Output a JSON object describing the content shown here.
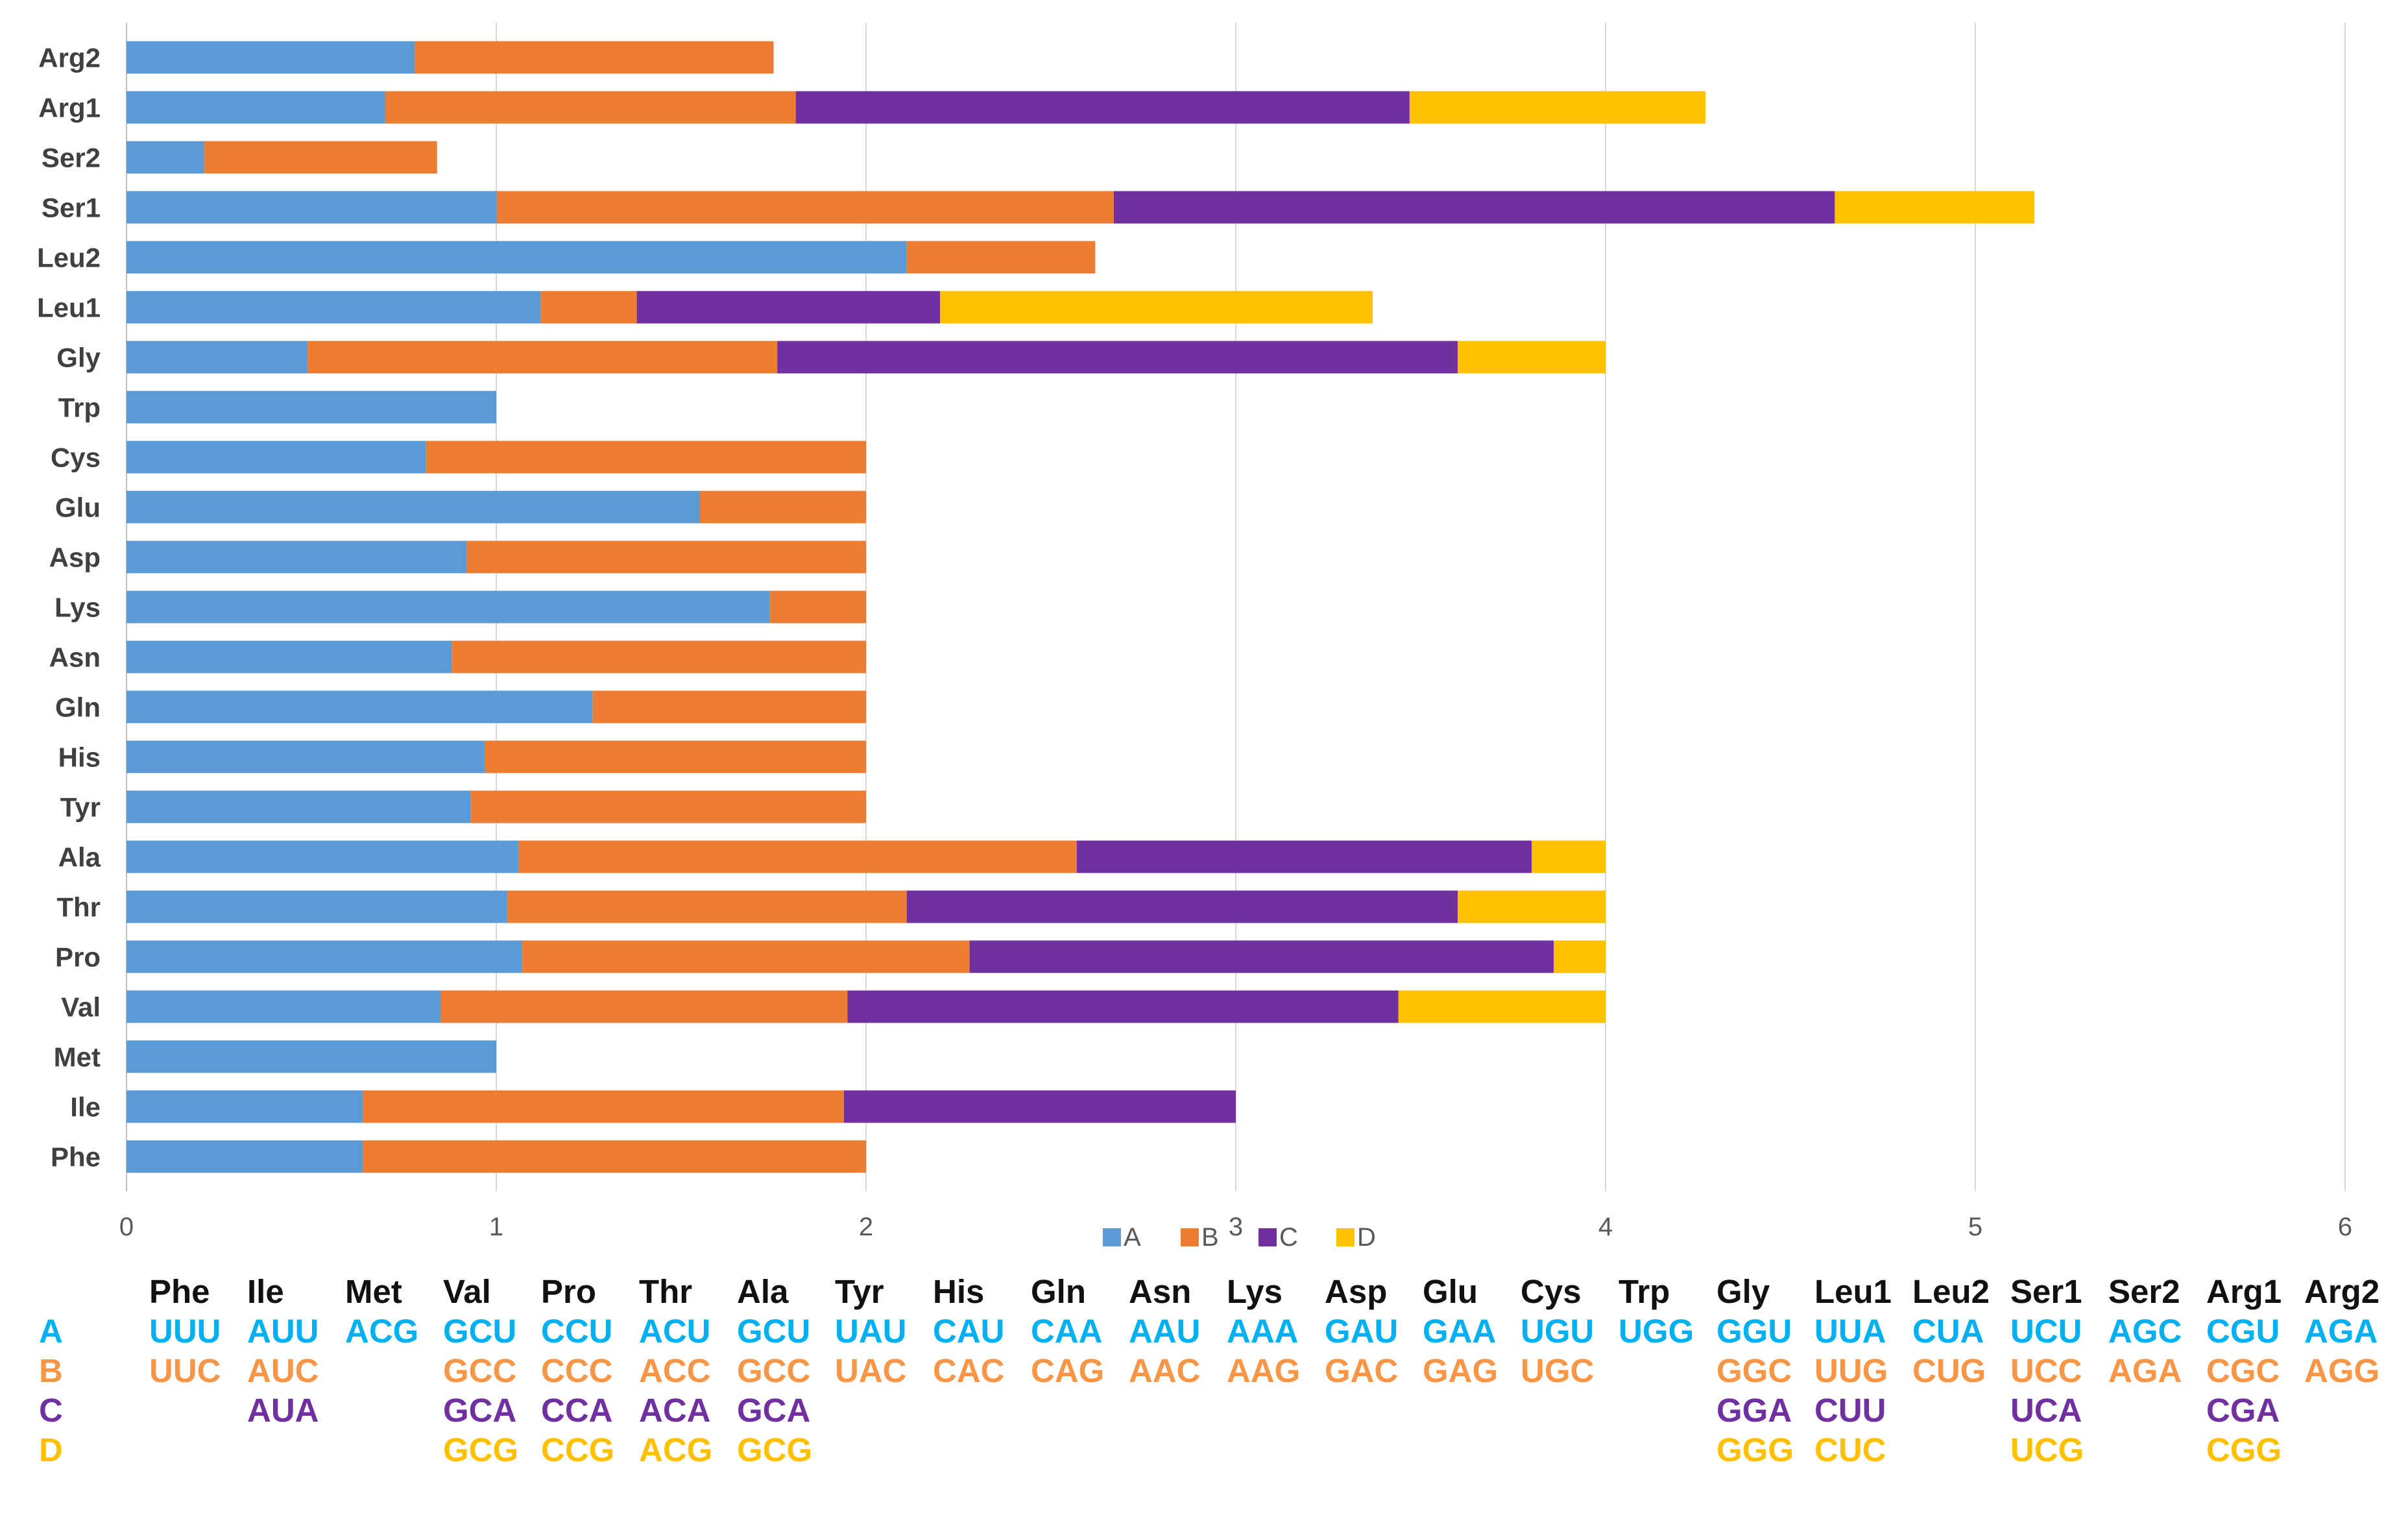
{
  "colors": {
    "A": "#5b9bd5",
    "B": "#ed7d31",
    "C": "#7030a0",
    "D": "#ffc000",
    "text_A": "#00b0f0",
    "text_B": "#f79646",
    "text_C": "#7030a0",
    "text_D": "#ffc000"
  },
  "chart_data": {
    "type": "bar",
    "orientation": "horizontal",
    "stacked": true,
    "categories": [
      "Arg2",
      "Arg1",
      "Ser2",
      "Ser1",
      "Leu2",
      "Leu1",
      "Gly",
      "Trp",
      "Cys",
      "Glu",
      "Asp",
      "Lys",
      "Asn",
      "Gln",
      "His",
      "Tyr",
      "Ala",
      "Thr",
      "Pro",
      "Val",
      "Met",
      "Ile",
      "Phe"
    ],
    "series": [
      {
        "name": "A",
        "color": "#5b9bd5",
        "values": [
          0.78,
          0.7,
          0.21,
          1.0,
          2.11,
          1.12,
          0.49,
          1.0,
          0.81,
          1.55,
          0.92,
          1.74,
          0.88,
          1.26,
          0.97,
          0.93,
          1.06,
          1.03,
          1.07,
          0.85,
          1.0,
          0.64,
          0.64
        ]
      },
      {
        "name": "B",
        "color": "#ed7d31",
        "values": [
          0.97,
          1.11,
          0.63,
          1.67,
          0.51,
          0.26,
          1.27,
          0,
          1.19,
          0.45,
          1.08,
          0.26,
          1.12,
          0.74,
          1.03,
          1.07,
          1.51,
          1.08,
          1.21,
          1.1,
          0,
          1.3,
          1.36
        ]
      },
      {
        "name": "C",
        "color": "#7030a0",
        "values": [
          0,
          1.66,
          0,
          1.95,
          0,
          0.82,
          1.84,
          0,
          0,
          0,
          0,
          0,
          0,
          0,
          0,
          0,
          1.23,
          1.49,
          1.58,
          1.49,
          0,
          1.06,
          0
        ]
      },
      {
        "name": "D",
        "color": "#ffc000",
        "values": [
          0,
          0.8,
          0,
          0.54,
          0,
          1.17,
          0.4,
          0,
          0,
          0,
          0,
          0,
          0,
          0,
          0,
          0,
          0.2,
          0.4,
          0.14,
          0.56,
          0,
          0,
          0
        ]
      }
    ],
    "xlim": [
      0,
      6
    ],
    "xticks": [
      "0",
      "1",
      "2",
      "3",
      "4",
      "5",
      "6"
    ],
    "grid": true,
    "legend": {
      "position": "bottom",
      "entries": [
        "A",
        "B",
        "C",
        "D"
      ]
    }
  },
  "codon_table": {
    "headers": [
      "Phe",
      "Ile",
      "Met",
      "Val",
      "Pro",
      "Thr",
      "Ala",
      "Tyr",
      "His",
      "Gln",
      "Asn",
      "Lys",
      "Asp",
      "Glu",
      "Cys",
      "Trp",
      "Gly",
      "Leu1",
      "Leu2",
      "Ser1",
      "Ser2",
      "Arg1",
      "Arg2"
    ],
    "rows": [
      {
        "label": "A",
        "cells": [
          "UUU",
          "AUU",
          "ACG",
          "GCU",
          "CCU",
          "ACU",
          "GCU",
          "UAU",
          "CAU",
          "CAA",
          "AAU",
          "AAA",
          "GAU",
          "GAA",
          "UGU",
          "UGG",
          "GGU",
          "UUA",
          "CUA",
          "UCU",
          "AGC",
          "CGU",
          "AGA"
        ]
      },
      {
        "label": "B",
        "cells": [
          "UUC",
          "AUC",
          "",
          "GCC",
          "CCC",
          "ACC",
          "GCC",
          "UAC",
          "CAC",
          "CAG",
          "AAC",
          "AAG",
          "GAC",
          "GAG",
          "UGC",
          "",
          "GGC",
          "UUG",
          "CUG",
          "UCC",
          "AGA",
          "CGC",
          "AGG"
        ]
      },
      {
        "label": "C",
        "cells": [
          "",
          "AUA",
          "",
          "GCA",
          "CCA",
          "ACA",
          "GCA",
          "",
          "",
          "",
          "",
          "",
          "",
          "",
          "",
          "",
          "GGA",
          "CUU",
          "",
          "UCA",
          "",
          "CGA",
          ""
        ]
      },
      {
        "label": "D",
        "cells": [
          "",
          "",
          "",
          "GCG",
          "CCG",
          "ACG",
          "GCG",
          "",
          "",
          "",
          "",
          "",
          "",
          "",
          "",
          "",
          "GGG",
          "CUC",
          "",
          "UCG",
          "",
          "CGG",
          ""
        ]
      }
    ]
  }
}
